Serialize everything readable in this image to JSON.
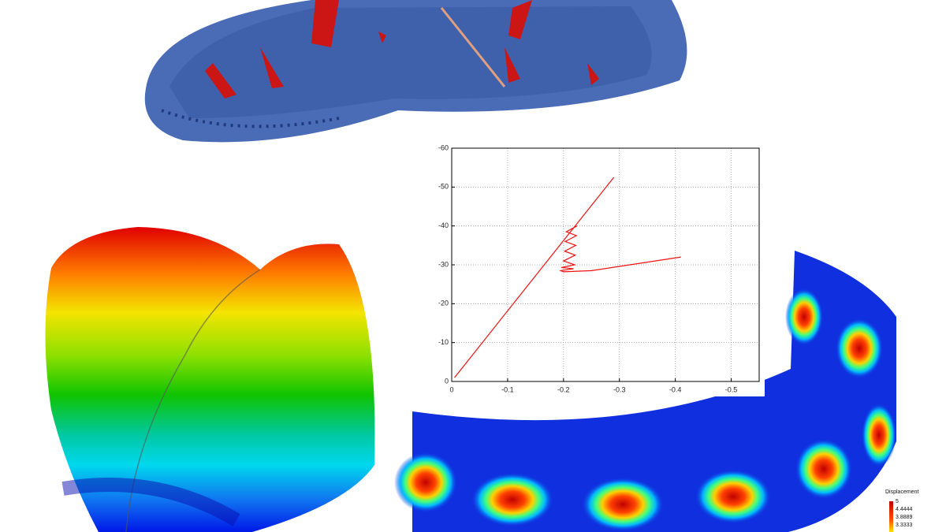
{
  "chart_data": {
    "type": "line",
    "xlim": [
      0,
      -0.55
    ],
    "ylim": [
      0,
      -60
    ],
    "xticks": [
      0,
      -0.1,
      -0.2,
      -0.3,
      -0.4,
      -0.5
    ],
    "yticks": [
      0,
      -10,
      -20,
      -30,
      -40,
      -50,
      -60
    ],
    "grid": true,
    "series": [
      {
        "color": "#ee1111",
        "x": [
          -0.005,
          -0.29,
          null,
          -0.224,
          -0.205,
          -0.223,
          -0.203,
          -0.222,
          -0.202,
          -0.221,
          -0.2,
          -0.22,
          -0.196,
          -0.218,
          -0.195,
          -0.2,
          -0.25,
          -0.41
        ],
        "values": [
          -1,
          -52.5,
          null,
          -40,
          -38.5,
          -37.5,
          -36,
          -35,
          -33.5,
          -32.5,
          -31,
          -30,
          -29.3,
          -29,
          -28.5,
          -28.2,
          -28.5,
          -32
        ]
      }
    ]
  },
  "legend": {
    "title": "Displacement",
    "labels": [
      "5",
      "4.4444",
      "3.8889",
      "3.3333"
    ]
  }
}
